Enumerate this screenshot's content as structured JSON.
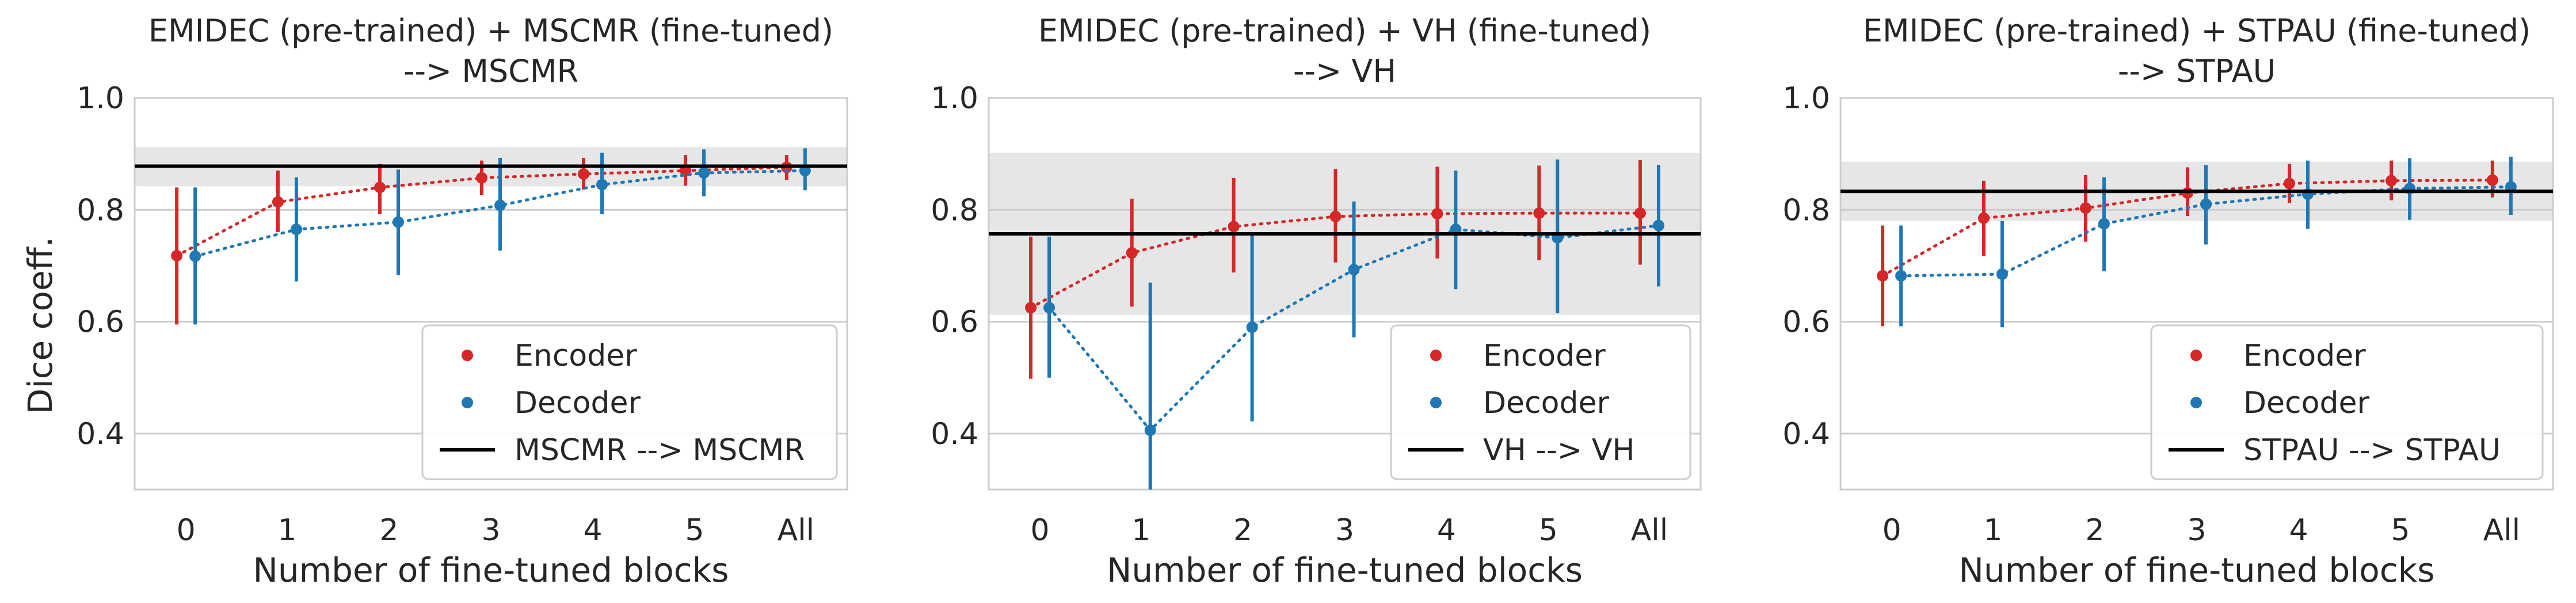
{
  "figure": {
    "ylabel": "Dice coeff.",
    "xlabel": "Number of fine-tuned blocks",
    "colors": {
      "encoder": "#d62728",
      "decoder": "#1f77b4",
      "baseline": "#000000",
      "band": "#e6e6e6",
      "grid": "#cccccc",
      "spine": "#cccccc"
    }
  },
  "chart_data": [
    {
      "type": "line",
      "title": "EMIDEC (pre-trained) + MSCMR (fine-tuned)",
      "subtitle": "--> MSCMR",
      "categories": [
        "0",
        "1",
        "2",
        "3",
        "4",
        "5",
        "All"
      ],
      "ylim": [
        0.3,
        1.0
      ],
      "yticks": [
        0.4,
        0.6,
        0.8,
        1.0
      ],
      "ytick_labels": [
        "0.4",
        "0.6",
        "0.8",
        "1.0"
      ],
      "legend_position": "lower right",
      "baseline": {
        "name": "MSCMR --> MSCMR",
        "value": 0.878,
        "band": [
          0.842,
          0.912
        ]
      },
      "series": [
        {
          "name": "Encoder",
          "values": [
            0.718,
            0.814,
            0.84,
            0.857,
            0.864,
            0.87,
            0.876
          ],
          "lower": [
            0.595,
            0.76,
            0.792,
            0.826,
            0.836,
            0.843,
            0.853
          ],
          "upper": [
            0.84,
            0.87,
            0.882,
            0.888,
            0.893,
            0.898,
            0.898
          ]
        },
        {
          "name": "Decoder",
          "values": [
            0.717,
            0.765,
            0.778,
            0.808,
            0.845,
            0.866,
            0.87
          ],
          "lower": [
            0.595,
            0.672,
            0.683,
            0.727,
            0.792,
            0.824,
            0.835
          ],
          "upper": [
            0.84,
            0.858,
            0.872,
            0.893,
            0.902,
            0.908,
            0.91
          ]
        }
      ]
    },
    {
      "type": "line",
      "title": "EMIDEC (pre-trained) + VH (fine-tuned)",
      "subtitle": "--> VH",
      "categories": [
        "0",
        "1",
        "2",
        "3",
        "4",
        "5",
        "All"
      ],
      "ylim": [
        0.3,
        1.0
      ],
      "yticks": [
        0.4,
        0.6,
        0.8,
        1.0
      ],
      "ytick_labels": [
        "0.4",
        "0.6",
        "0.8",
        "1.0"
      ],
      "legend_position": "lower right",
      "baseline": {
        "name": "VH --> VH",
        "value": 0.757,
        "band": [
          0.612,
          0.902
        ]
      },
      "series": [
        {
          "name": "Encoder",
          "values": [
            0.625,
            0.723,
            0.77,
            0.788,
            0.793,
            0.794,
            0.794
          ],
          "lower": [
            0.498,
            0.627,
            0.688,
            0.706,
            0.713,
            0.71,
            0.702
          ],
          "upper": [
            0.752,
            0.82,
            0.857,
            0.873,
            0.877,
            0.879,
            0.889
          ]
        },
        {
          "name": "Decoder",
          "values": [
            0.625,
            0.406,
            0.59,
            0.693,
            0.765,
            0.75,
            0.772
          ],
          "lower": [
            0.5,
            0.3,
            0.422,
            0.572,
            0.658,
            0.615,
            0.663
          ],
          "upper": [
            0.752,
            0.67,
            0.755,
            0.815,
            0.87,
            0.89,
            0.88
          ]
        }
      ]
    },
    {
      "type": "line",
      "title": "EMIDEC (pre-trained) + STPAU (fine-tuned)",
      "subtitle": "--> STPAU",
      "categories": [
        "0",
        "1",
        "2",
        "3",
        "4",
        "5",
        "All"
      ],
      "ylim": [
        0.3,
        1.0
      ],
      "yticks": [
        0.4,
        0.6,
        0.8,
        1.0
      ],
      "ytick_labels": [
        "0.4",
        "0.6",
        "0.8",
        "1.0"
      ],
      "legend_position": "lower right",
      "baseline": {
        "name": "STPAU --> STPAU",
        "value": 0.833,
        "band": [
          0.78,
          0.886
        ]
      },
      "series": [
        {
          "name": "Encoder",
          "values": [
            0.682,
            0.785,
            0.803,
            0.83,
            0.847,
            0.852,
            0.853
          ],
          "lower": [
            0.592,
            0.718,
            0.743,
            0.789,
            0.812,
            0.817,
            0.822
          ],
          "upper": [
            0.772,
            0.852,
            0.862,
            0.876,
            0.882,
            0.888,
            0.888
          ]
        },
        {
          "name": "Decoder",
          "values": [
            0.682,
            0.685,
            0.775,
            0.81,
            0.828,
            0.838,
            0.841
          ],
          "lower": [
            0.592,
            0.59,
            0.69,
            0.738,
            0.766,
            0.782,
            0.791
          ],
          "upper": [
            0.772,
            0.78,
            0.858,
            0.88,
            0.888,
            0.892,
            0.895
          ]
        }
      ]
    }
  ]
}
